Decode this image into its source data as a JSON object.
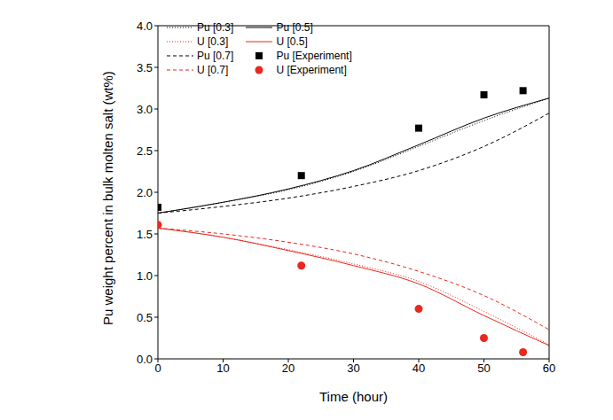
{
  "chart_data": {
    "type": "line",
    "x_label": "Time (hour)",
    "y_label": "Pu weight percent in bulk molten salt (wt%)",
    "xlim": [
      0,
      60
    ],
    "xticks": [
      0,
      10,
      20,
      30,
      40,
      50,
      60
    ],
    "ylim": [
      0,
      4
    ],
    "yticks": [
      {
        "value": 0,
        "label": "0.0"
      },
      0.5,
      {
        "value": 1,
        "label": "1.0"
      },
      1.5,
      {
        "value": 2,
        "label": "2.0"
      },
      2.5,
      {
        "value": 3,
        "label": "3.0"
      },
      3.5,
      {
        "value": 4,
        "label": "4.0"
      }
    ],
    "grid": false,
    "legend": "upper left",
    "series": [
      {
        "name": "Pu [0.3]",
        "color": "#000000",
        "line_style": "dotted",
        "x": [
          0,
          10,
          20,
          30,
          40,
          50,
          60
        ],
        "values": [
          1.75,
          1.88,
          2.03,
          2.25,
          2.55,
          2.86,
          3.13
        ]
      },
      {
        "name": "Pu [0.5]",
        "color": "#000000",
        "line_style": "solid",
        "x": [
          0,
          10,
          20,
          30,
          40,
          50,
          60
        ],
        "values": [
          1.75,
          1.88,
          2.04,
          2.26,
          2.57,
          2.89,
          3.13
        ]
      },
      {
        "name": "U [0.3]",
        "color": "#e8281e",
        "line_style": "dotted",
        "x": [
          0,
          10,
          20,
          30,
          40,
          50,
          60
        ],
        "values": [
          1.57,
          1.46,
          1.31,
          1.14,
          0.93,
          0.57,
          0.17
        ]
      },
      {
        "name": "U [0.5]",
        "color": "#e8281e",
        "line_style": "solid",
        "x": [
          0,
          10,
          20,
          30,
          40,
          50,
          60
        ],
        "values": [
          1.57,
          1.46,
          1.3,
          1.12,
          0.9,
          0.52,
          0.16
        ]
      },
      {
        "name": "Pu [0.7]",
        "color": "#000000",
        "line_style": "dashed",
        "x": [
          0,
          10,
          20,
          30,
          40,
          50,
          60
        ],
        "values": [
          1.75,
          1.83,
          1.93,
          2.07,
          2.26,
          2.55,
          2.95
        ]
      },
      {
        "name": "Pu [Experiment]",
        "color": "#000000",
        "type": "scatter",
        "marker": "square",
        "x": [
          0,
          22,
          40,
          50,
          56
        ],
        "values": [
          1.82,
          2.2,
          2.77,
          3.17,
          3.22
        ]
      },
      {
        "name": "U [0.7]",
        "color": "#e8281e",
        "line_style": "dashed",
        "x": [
          0,
          10,
          20,
          30,
          40,
          50,
          60
        ],
        "values": [
          1.57,
          1.5,
          1.4,
          1.26,
          1.05,
          0.76,
          0.35
        ]
      },
      {
        "name": "U [Experiment]",
        "color": "#e8281e",
        "type": "scatter",
        "marker": "circle",
        "x": [
          0,
          22,
          40,
          50,
          56
        ],
        "values": [
          1.61,
          1.12,
          0.6,
          0.25,
          0.08
        ]
      }
    ]
  }
}
